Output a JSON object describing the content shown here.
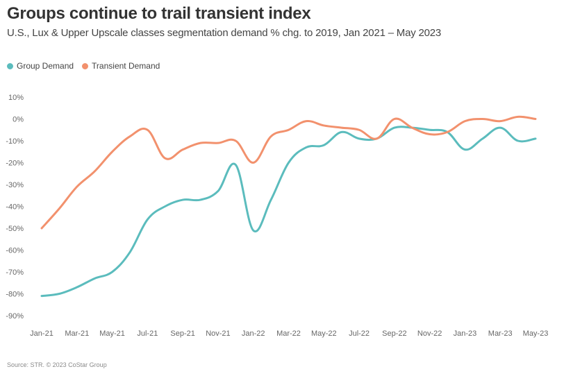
{
  "header": {
    "title": "Groups continue to trail transient index",
    "subtitle": "U.S., Lux & Upper Upscale classes segmentation demand % chg. to 2019, Jan 2021 – May 2023"
  },
  "source": "Source: STR. © 2023 CoStar Group",
  "chart_data": {
    "type": "line",
    "title": "Groups continue to trail transient index",
    "subtitle": "U.S., Lux & Upper Upscale classes segmentation demand % chg. to 2019, Jan 2021 – May 2023",
    "xlabel": "",
    "ylabel": "",
    "ylim": [
      -90,
      10
    ],
    "yticks": [
      10,
      0,
      -10,
      -20,
      -30,
      -40,
      -50,
      -60,
      -70,
      -80,
      -90
    ],
    "ytick_labels": [
      "10%",
      "0%",
      "-10%",
      "-20%",
      "-30%",
      "-40%",
      "-50%",
      "-60%",
      "-70%",
      "-80%",
      "-90%"
    ],
    "grid": false,
    "legend_position": "top-left",
    "x": [
      "Jan-21",
      "Feb-21",
      "Mar-21",
      "Apr-21",
      "May-21",
      "Jun-21",
      "Jul-21",
      "Aug-21",
      "Sep-21",
      "Oct-21",
      "Nov-21",
      "Dec-21",
      "Jan-22",
      "Feb-22",
      "Mar-22",
      "Apr-22",
      "May-22",
      "Jun-22",
      "Jul-22",
      "Aug-22",
      "Sep-22",
      "Oct-22",
      "Nov-22",
      "Dec-22",
      "Jan-23",
      "Feb-23",
      "Mar-23",
      "Apr-23",
      "May-23"
    ],
    "x_tick_labels": [
      "Jan-21",
      "Mar-21",
      "May-21",
      "Jul-21",
      "Sep-21",
      "Nov-21",
      "Jan-22",
      "Mar-22",
      "May-22",
      "Jul-22",
      "Sep-22",
      "Nov-22",
      "Jan-23",
      "Mar-23",
      "May-23"
    ],
    "series": [
      {
        "name": "Group Demand",
        "color": "#5bbcbd",
        "values": [
          -81,
          -80,
          -77,
          -73,
          -70,
          -61,
          -46,
          -40,
          -37,
          -37,
          -33,
          -21,
          -51,
          -37,
          -20,
          -13,
          -12,
          -6,
          -9,
          -9,
          -4,
          -4,
          -5,
          -6,
          -14,
          -9,
          -4,
          -10,
          -9
        ]
      },
      {
        "name": "Transient Demand",
        "color": "#f2916d",
        "values": [
          -50,
          -41,
          -31,
          -24,
          -15,
          -8,
          -5,
          -18,
          -14,
          -11,
          -11,
          -10,
          -20,
          -8,
          -5,
          -1,
          -3,
          -4,
          -5,
          -9,
          0,
          -4,
          -7,
          -6,
          -1,
          0,
          -1,
          1,
          0
        ]
      }
    ]
  }
}
